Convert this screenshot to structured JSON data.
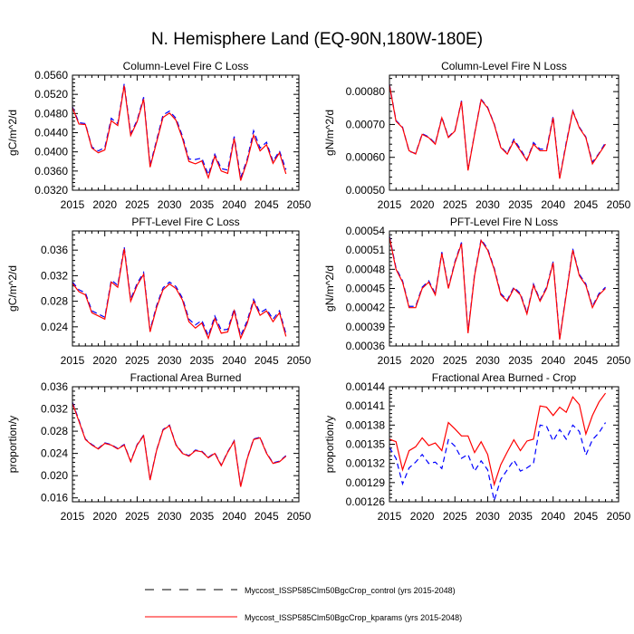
{
  "title": "N. Hemisphere Land (EQ-90N,180W-180E)",
  "legend": [
    {
      "label": "Myccost_ISSP585Clm50BgcCrop_control (yrs 2015-2048)",
      "color": "#0000ff",
      "dash": true
    },
    {
      "label": "Myccost_ISSP585Clm50BgcCrop_kparams (yrs 2015-2048)",
      "color": "#ff0000",
      "dash": false
    }
  ],
  "chart_data": [
    {
      "type": "line",
      "title": "Column-Level Fire C Loss",
      "ylabel": "gC/m^2/d",
      "xlim": [
        2015,
        2050
      ],
      "xticks": [
        2015,
        2020,
        2025,
        2030,
        2035,
        2040,
        2045,
        2050
      ],
      "ylim": [
        0.032,
        0.056
      ],
      "yticks": [
        0.032,
        0.036,
        0.04,
        0.044,
        0.048,
        0.052,
        0.056
      ],
      "ydec": 4,
      "x_start": 2015,
      "series": [
        {
          "name": "control",
          "values": [
            0.0494,
            0.0461,
            0.0459,
            0.041,
            0.0402,
            0.0409,
            0.047,
            0.0459,
            0.0542,
            0.0438,
            0.0466,
            0.0514,
            0.0372,
            0.0424,
            0.0477,
            0.0485,
            0.047,
            0.0433,
            0.0385,
            0.0384,
            0.0387,
            0.0352,
            0.0395,
            0.0365,
            0.0362,
            0.0432,
            0.0346,
            0.0384,
            0.0444,
            0.0408,
            0.042,
            0.038,
            0.0402,
            0.0363
          ]
        },
        {
          "name": "kparams",
          "values": [
            0.0492,
            0.0458,
            0.0457,
            0.0408,
            0.0398,
            0.0404,
            0.0465,
            0.0455,
            0.0538,
            0.0434,
            0.0463,
            0.051,
            0.0368,
            0.042,
            0.0472,
            0.0481,
            0.0466,
            0.0428,
            0.038,
            0.0375,
            0.0381,
            0.0346,
            0.0391,
            0.036,
            0.0355,
            0.0428,
            0.034,
            0.038,
            0.0435,
            0.0402,
            0.0415,
            0.0376,
            0.0398,
            0.0354
          ]
        }
      ]
    },
    {
      "type": "line",
      "title": "Column-Level Fire N Loss",
      "ylabel": "gN/m^2/d",
      "xlim": [
        2015,
        2050
      ],
      "xticks": [
        2015,
        2020,
        2025,
        2030,
        2035,
        2040,
        2045,
        2050
      ],
      "ylim": [
        0.0005,
        0.00085
      ],
      "yticks": [
        0.0005,
        0.0006,
        0.0007,
        0.0008
      ],
      "ydec": 5,
      "x_start": 2015,
      "series": [
        {
          "name": "control",
          "values": [
            0.000822,
            0.000712,
            0.000692,
            0.000618,
            0.000612,
            0.000672,
            0.000662,
            0.000642,
            0.000722,
            0.000662,
            0.000682,
            0.000772,
            0.000562,
            0.000672,
            0.000777,
            0.000752,
            0.000702,
            0.000632,
            0.000612,
            0.000655,
            0.000625,
            0.000592,
            0.000645,
            0.000625,
            0.000625,
            0.000725,
            0.000538,
            0.000645,
            0.000742,
            0.000692,
            0.000662,
            0.000585,
            0.000612,
            0.000645
          ]
        },
        {
          "name": "kparams",
          "values": [
            0.00082,
            0.00071,
            0.00069,
            0.00062,
            0.00061,
            0.00067,
            0.00066,
            0.00064,
            0.00072,
            0.00066,
            0.00068,
            0.00077,
            0.00056,
            0.00067,
            0.000775,
            0.00075,
            0.0007,
            0.00063,
            0.00061,
            0.00065,
            0.00062,
            0.00059,
            0.00064,
            0.00062,
            0.00062,
            0.00072,
            0.000535,
            0.00064,
            0.00074,
            0.00069,
            0.00066,
            0.00058,
            0.00061,
            0.00064
          ]
        }
      ]
    },
    {
      "type": "line",
      "title": "PFT-Level Fire C Loss",
      "ylabel": "gC/m^2/d",
      "xlim": [
        2015,
        2050
      ],
      "xticks": [
        2015,
        2020,
        2025,
        2030,
        2035,
        2040,
        2045,
        2050
      ],
      "ylim": [
        0.021,
        0.039
      ],
      "yticks": [
        0.024,
        0.028,
        0.032,
        0.036
      ],
      "ydec": 3,
      "x_start": 2015,
      "series": [
        {
          "name": "control",
          "values": [
            0.031,
            0.0298,
            0.0293,
            0.0265,
            0.026,
            0.0255,
            0.0313,
            0.0305,
            0.0365,
            0.0283,
            0.0308,
            0.0325,
            0.0235,
            0.0273,
            0.0301,
            0.031,
            0.0303,
            0.0285,
            0.0252,
            0.0243,
            0.025,
            0.0226,
            0.0257,
            0.0235,
            0.0236,
            0.0268,
            0.0226,
            0.0249,
            0.0283,
            0.0262,
            0.0268,
            0.0252,
            0.0265,
            0.0229
          ]
        },
        {
          "name": "kparams",
          "values": [
            0.0308,
            0.0295,
            0.029,
            0.0262,
            0.0257,
            0.0252,
            0.031,
            0.0302,
            0.0362,
            0.028,
            0.0305,
            0.0322,
            0.0232,
            0.027,
            0.0298,
            0.0307,
            0.03,
            0.0282,
            0.0248,
            0.0238,
            0.0246,
            0.0222,
            0.0253,
            0.023,
            0.0232,
            0.0265,
            0.0222,
            0.0245,
            0.028,
            0.0258,
            0.0265,
            0.0248,
            0.0262,
            0.0225
          ]
        }
      ]
    },
    {
      "type": "line",
      "title": "PFT-Level Fire N Loss",
      "ylabel": "gN/m^2/d",
      "xlim": [
        2015,
        2050
      ],
      "xticks": [
        2015,
        2020,
        2025,
        2030,
        2035,
        2040,
        2045,
        2050
      ],
      "ylim": [
        0.00036,
        0.00054
      ],
      "yticks": [
        0.00036,
        0.00039,
        0.00042,
        0.00045,
        0.00048,
        0.00051,
        0.00054
      ],
      "ydec": 5,
      "x_start": 2015,
      "series": [
        {
          "name": "control",
          "values": [
            0.000532,
            0.000482,
            0.000462,
            0.000422,
            0.000422,
            0.000452,
            0.000462,
            0.000442,
            0.000507,
            0.000452,
            0.000492,
            0.000522,
            0.000382,
            0.000472,
            0.000527,
            0.000512,
            0.000482,
            0.000442,
            0.000432,
            0.000452,
            0.000442,
            0.000412,
            0.000457,
            0.000432,
            0.000452,
            0.000492,
            0.000372,
            0.000442,
            0.000512,
            0.000472,
            0.000457,
            0.000422,
            0.000442,
            0.000452
          ]
        },
        {
          "name": "kparams",
          "values": [
            0.00053,
            0.00048,
            0.00046,
            0.00042,
            0.00042,
            0.00045,
            0.00046,
            0.00044,
            0.000505,
            0.00045,
            0.00049,
            0.00052,
            0.00038,
            0.00047,
            0.000525,
            0.00051,
            0.00048,
            0.00044,
            0.00043,
            0.00045,
            0.00044,
            0.00041,
            0.000455,
            0.00043,
            0.00045,
            0.00049,
            0.00037,
            0.00044,
            0.00051,
            0.00047,
            0.000455,
            0.00042,
            0.00044,
            0.00045
          ]
        }
      ]
    },
    {
      "type": "line",
      "title": "Fractional Area Burned",
      "ylabel": "proportion/y",
      "xlim": [
        2015,
        2050
      ],
      "xticks": [
        2015,
        2020,
        2025,
        2030,
        2035,
        2040,
        2045,
        2050
      ],
      "ylim": [
        0.0153,
        0.036
      ],
      "yticks": [
        0.016,
        0.02,
        0.024,
        0.028,
        0.032,
        0.036
      ],
      "ydec": 3,
      "x_start": 2015,
      "series": [
        {
          "name": "control",
          "values": [
            0.0332,
            0.03,
            0.0266,
            0.0256,
            0.0249,
            0.0259,
            0.0256,
            0.0249,
            0.0256,
            0.0226,
            0.0256,
            0.0273,
            0.0193,
            0.0246,
            0.0283,
            0.0291,
            0.0256,
            0.0241,
            0.0236,
            0.0246,
            0.0244,
            0.0233,
            0.0241,
            0.0219,
            0.0243,
            0.0263,
            0.0181,
            0.0231,
            0.0266,
            0.0269,
            0.0241,
            0.0223,
            0.0226,
            0.0236
          ]
        },
        {
          "name": "kparams",
          "values": [
            0.033,
            0.0298,
            0.0265,
            0.0255,
            0.0248,
            0.0258,
            0.0255,
            0.0248,
            0.0255,
            0.0225,
            0.0255,
            0.0272,
            0.0192,
            0.0245,
            0.0282,
            0.029,
            0.0255,
            0.024,
            0.0235,
            0.0245,
            0.0243,
            0.0232,
            0.024,
            0.0218,
            0.0242,
            0.0262,
            0.018,
            0.023,
            0.0265,
            0.0268,
            0.024,
            0.0222,
            0.0225,
            0.0235
          ]
        }
      ]
    },
    {
      "type": "line",
      "title": "Fractional Area Burned - Crop",
      "ylabel": "proportion/y",
      "xlim": [
        2015,
        2050
      ],
      "xticks": [
        2015,
        2020,
        2025,
        2030,
        2035,
        2040,
        2045,
        2050
      ],
      "ylim": [
        0.00126,
        0.00144
      ],
      "yticks": [
        0.00126,
        0.00129,
        0.00132,
        0.00135,
        0.00138,
        0.00141,
        0.00144
      ],
      "ydec": 5,
      "x_start": 2015,
      "series": [
        {
          "name": "control",
          "values": [
            0.001345,
            0.001328,
            0.001288,
            0.001313,
            0.001322,
            0.001334,
            0.00132,
            0.001322,
            0.001312,
            0.001357,
            0.001347,
            0.001328,
            0.001334,
            0.001308,
            0.001324,
            0.00131,
            0.001262,
            0.001295,
            0.00131,
            0.001325,
            0.001308,
            0.001313,
            0.00132,
            0.00138,
            0.001378,
            0.001355,
            0.001373,
            0.001358,
            0.00138,
            0.00137,
            0.001333,
            0.001357,
            0.001368,
            0.001384
          ]
        },
        {
          "name": "kparams",
          "values": [
            0.001358,
            0.001354,
            0.00131,
            0.00134,
            0.001346,
            0.00136,
            0.001348,
            0.001352,
            0.00134,
            0.001384,
            0.001374,
            0.001363,
            0.001363,
            0.001337,
            0.001354,
            0.001334,
            0.001287,
            0.001318,
            0.001338,
            0.001357,
            0.00134,
            0.001355,
            0.001358,
            0.00141,
            0.001408,
            0.001395,
            0.001408,
            0.0014,
            0.001424,
            0.001412,
            0.001366,
            0.001395,
            0.001416,
            0.00143
          ]
        }
      ]
    }
  ]
}
